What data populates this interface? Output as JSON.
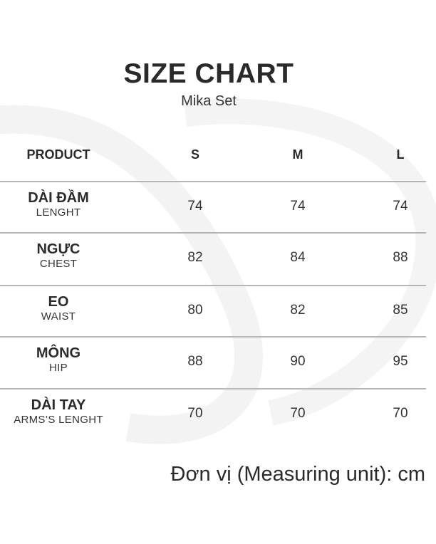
{
  "title": "SIZE CHART",
  "subtitle": "Mika Set",
  "table": {
    "headers": [
      "PRODUCT",
      "S",
      "M",
      "L"
    ],
    "rows": [
      {
        "label": "DÀI ĐẦM",
        "sublabel": "LENGHT",
        "values": [
          "74",
          "74",
          "74"
        ]
      },
      {
        "label": "NGỰC",
        "sublabel": "CHEST",
        "values": [
          "82",
          "84",
          "88"
        ]
      },
      {
        "label": "EO",
        "sublabel": "WAIST",
        "values": [
          "80",
          "82",
          "85"
        ]
      },
      {
        "label": "MÔNG",
        "sublabel": "HIP",
        "values": [
          "88",
          "90",
          "95"
        ]
      },
      {
        "label": "DÀI TAY",
        "sublabel": "ARMS’S LENGHT",
        "values": [
          "70",
          "70",
          "70"
        ]
      }
    ]
  },
  "footer": "Đơn vị (Measuring unit): cm",
  "colors": {
    "text": "#2a2a2a",
    "divider": "#b5b5b5",
    "watermark": "#f3f3f3"
  }
}
